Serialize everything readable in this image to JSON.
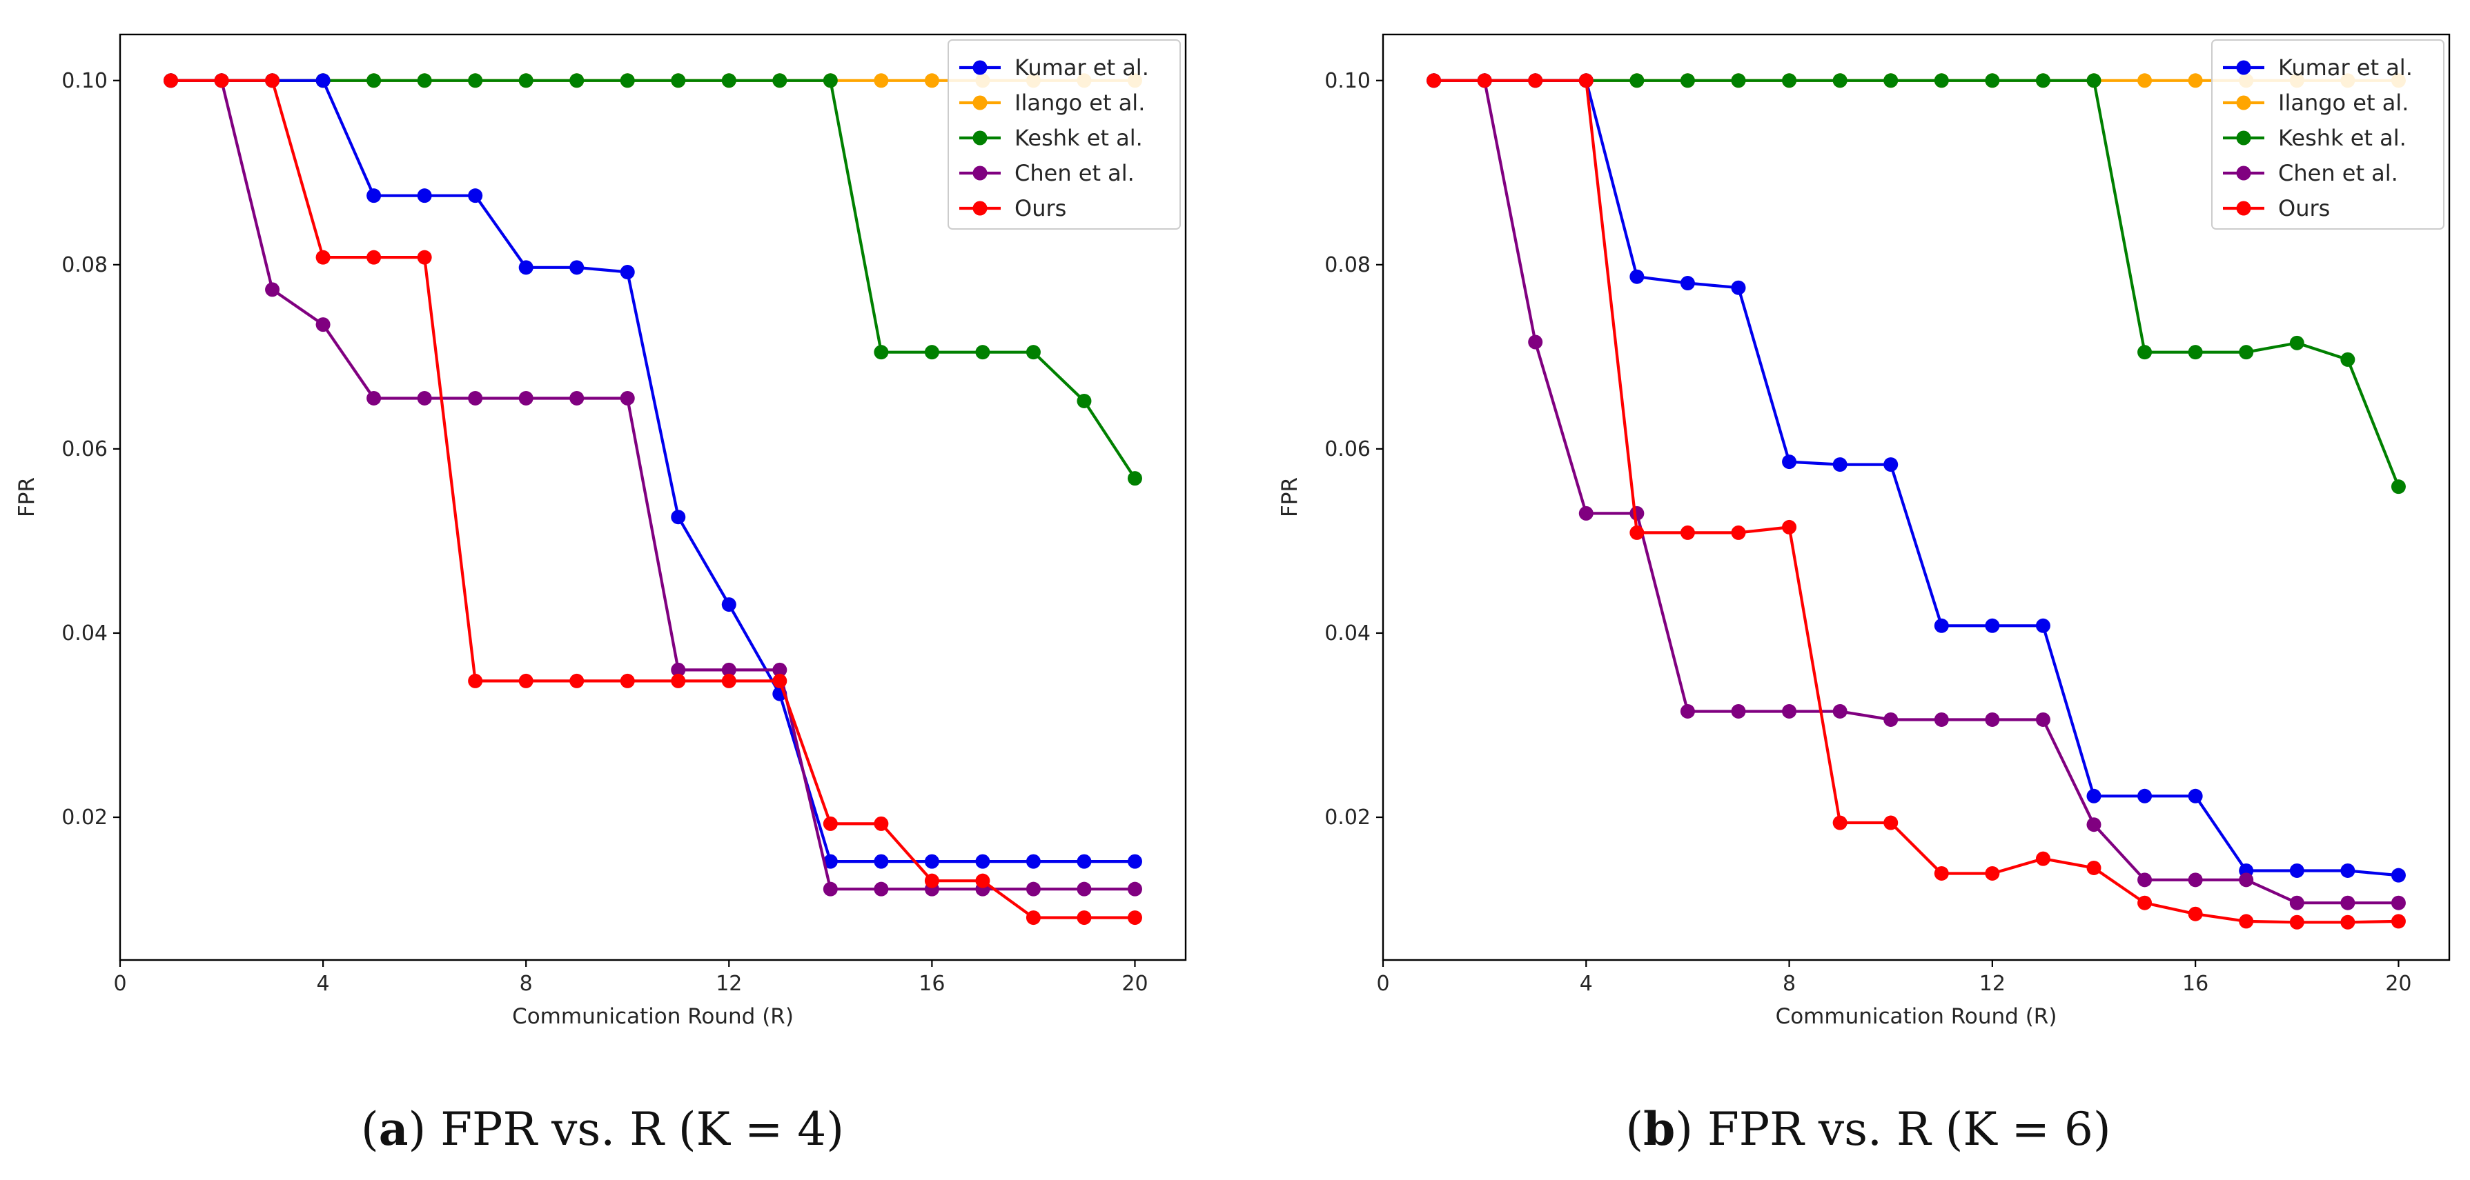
{
  "figure": {
    "panels": [
      {
        "caption_letter": "a",
        "caption_text": ") FPR vs. R (K = 4)",
        "caption_open": "("
      },
      {
        "caption_letter": "b",
        "caption_text": ") FPR vs. R (K = 6)",
        "caption_open": "("
      }
    ]
  },
  "colors": {
    "Kumar et al.": "#0000ee",
    "Ilango et al.": "#ffa500",
    "Keshk et al.": "#008000",
    "Chen et al.": "#800080",
    "Ours": "#ff0000"
  },
  "chart_data": [
    {
      "type": "line",
      "title": "",
      "xlabel": "Communication Round (R)",
      "ylabel": "FPR",
      "xlim": [
        0,
        21
      ],
      "ylim": [
        0.0045,
        0.105
      ],
      "xticks": [
        0,
        4,
        8,
        12,
        16,
        20
      ],
      "yticks": [
        0.02,
        0.04,
        0.06,
        0.08,
        0.1
      ],
      "ytick_labels": [
        "0.02",
        "0.04",
        "0.06",
        "0.08",
        "0.10"
      ],
      "grid": false,
      "legend_position": "top-right",
      "x": [
        1,
        2,
        3,
        4,
        5,
        6,
        7,
        8,
        9,
        10,
        11,
        12,
        13,
        14,
        15,
        16,
        17,
        18,
        19,
        20
      ],
      "series": [
        {
          "name": "Ilango et al.",
          "values": [
            0.1,
            0.1,
            0.1,
            0.1,
            0.1,
            0.1,
            0.1,
            0.1,
            0.1,
            0.1,
            0.1,
            0.1,
            0.1,
            0.1,
            0.1,
            0.1,
            0.1,
            0.1,
            0.1,
            0.1
          ]
        },
        {
          "name": "Keshk et al.",
          "values": [
            0.1,
            0.1,
            0.1,
            0.1,
            0.1,
            0.1,
            0.1,
            0.1,
            0.1,
            0.1,
            0.1,
            0.1,
            0.1,
            0.1,
            0.0705,
            0.0705,
            0.0705,
            0.0705,
            0.0652,
            0.0568
          ]
        },
        {
          "name": "Kumar et al.",
          "values": [
            0.1,
            0.1,
            0.1,
            0.1,
            0.0875,
            0.0875,
            0.0875,
            0.0797,
            0.0797,
            0.0792,
            0.0526,
            0.0431,
            0.0334,
            0.0152,
            0.0152,
            0.0152,
            0.0152,
            0.0152,
            0.0152,
            0.0152
          ]
        },
        {
          "name": "Chen et al.",
          "values": [
            0.1,
            0.1,
            0.0773,
            0.0735,
            0.0655,
            0.0655,
            0.0655,
            0.0655,
            0.0655,
            0.0655,
            0.036,
            0.036,
            0.036,
            0.0122,
            0.0122,
            0.0122,
            0.0122,
            0.0122,
            0.0122,
            0.0122
          ]
        },
        {
          "name": "Ours",
          "values": [
            0.1,
            0.1,
            0.1,
            0.0808,
            0.0808,
            0.0808,
            0.0348,
            0.0348,
            0.0348,
            0.0348,
            0.0348,
            0.0348,
            0.0348,
            0.0193,
            0.0193,
            0.0131,
            0.0131,
            0.0091,
            0.0091,
            0.0091
          ]
        }
      ],
      "legend": [
        "Kumar et al.",
        "Ilango et al.",
        "Keshk et al.",
        "Chen et al.",
        "Ours"
      ]
    },
    {
      "type": "line",
      "title": "",
      "xlabel": "Communication Round (R)",
      "ylabel": "FPR",
      "xlim": [
        0,
        21
      ],
      "ylim": [
        0.0045,
        0.105
      ],
      "xticks": [
        0,
        4,
        8,
        12,
        16,
        20
      ],
      "yticks": [
        0.02,
        0.04,
        0.06,
        0.08,
        0.1
      ],
      "ytick_labels": [
        "0.02",
        "0.04",
        "0.06",
        "0.08",
        "0.10"
      ],
      "grid": false,
      "legend_position": "top-right",
      "x": [
        1,
        2,
        3,
        4,
        5,
        6,
        7,
        8,
        9,
        10,
        11,
        12,
        13,
        14,
        15,
        16,
        17,
        18,
        19,
        20
      ],
      "series": [
        {
          "name": "Ilango et al.",
          "values": [
            0.1,
            0.1,
            0.1,
            0.1,
            0.1,
            0.1,
            0.1,
            0.1,
            0.1,
            0.1,
            0.1,
            0.1,
            0.1,
            0.1,
            0.1,
            0.1,
            0.1,
            0.1,
            0.1,
            0.1
          ]
        },
        {
          "name": "Keshk et al.",
          "values": [
            0.1,
            0.1,
            0.1,
            0.1,
            0.1,
            0.1,
            0.1,
            0.1,
            0.1,
            0.1,
            0.1,
            0.1,
            0.1,
            0.1,
            0.0705,
            0.0705,
            0.0705,
            0.0715,
            0.0697,
            0.0559
          ]
        },
        {
          "name": "Kumar et al.",
          "values": [
            0.1,
            0.1,
            0.1,
            0.1,
            0.0787,
            0.078,
            0.0775,
            0.0586,
            0.0583,
            0.0583,
            0.0408,
            0.0408,
            0.0408,
            0.0223,
            0.0223,
            0.0223,
            0.0142,
            0.0142,
            0.0142,
            0.0137
          ]
        },
        {
          "name": "Chen et al.",
          "values": [
            0.1,
            0.1,
            0.0716,
            0.053,
            0.053,
            0.0315,
            0.0315,
            0.0315,
            0.0315,
            0.0306,
            0.0306,
            0.0306,
            0.0306,
            0.0192,
            0.0132,
            0.0132,
            0.0132,
            0.0107,
            0.0107,
            0.0107
          ]
        },
        {
          "name": "Ours",
          "values": [
            0.1,
            0.1,
            0.1,
            0.1,
            0.0509,
            0.0509,
            0.0509,
            0.0515,
            0.0194,
            0.0194,
            0.0139,
            0.0139,
            0.0155,
            0.0145,
            0.0107,
            0.0095,
            0.0087,
            0.0086,
            0.0086,
            0.0087
          ]
        }
      ],
      "legend": [
        "Kumar et al.",
        "Ilango et al.",
        "Keshk et al.",
        "Chen et al.",
        "Ours"
      ]
    }
  ]
}
